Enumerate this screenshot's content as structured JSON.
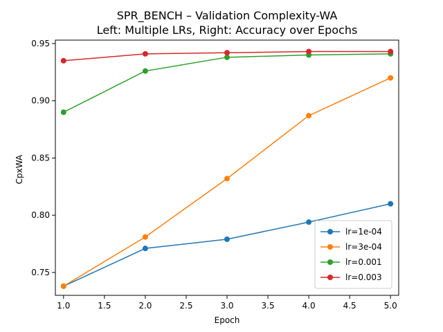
{
  "chart_data": {
    "type": "line",
    "title": "SPR_BENCH – Validation Complexity-WA",
    "subtitle": "Left: Multiple LRs, Right: Accuracy over Epochs",
    "xlabel": "Epoch",
    "ylabel": "CpxWA",
    "xlim": [
      0.9,
      5.1
    ],
    "ylim": [
      0.73,
      0.953
    ],
    "xticks": [
      1.0,
      1.5,
      2.0,
      2.5,
      3.0,
      3.5,
      4.0,
      4.5,
      5.0
    ],
    "xtick_labels": [
      "1.0",
      "1.5",
      "2.0",
      "2.5",
      "3.0",
      "3.5",
      "4.0",
      "4.5",
      "5.0"
    ],
    "yticks": [
      0.75,
      0.8,
      0.85,
      0.9,
      0.95
    ],
    "ytick_labels": [
      "0.75",
      "0.80",
      "0.85",
      "0.90",
      "0.95"
    ],
    "grid": false,
    "legend_position": "lower-right",
    "x": [
      1,
      2,
      3,
      4,
      5
    ],
    "series": [
      {
        "name": "lr=1e-04",
        "color": "#1f77b4",
        "values": [
          0.738,
          0.771,
          0.779,
          0.794,
          0.81
        ]
      },
      {
        "name": "lr=3e-04",
        "color": "#ff7f0e",
        "values": [
          0.738,
          0.781,
          0.832,
          0.887,
          0.92
        ]
      },
      {
        "name": "lr=0.001",
        "color": "#2ca02c",
        "values": [
          0.89,
          0.926,
          0.938,
          0.94,
          0.941
        ]
      },
      {
        "name": "lr=0.003",
        "color": "#d62728",
        "values": [
          0.935,
          0.941,
          0.942,
          0.943,
          0.943
        ]
      }
    ]
  }
}
